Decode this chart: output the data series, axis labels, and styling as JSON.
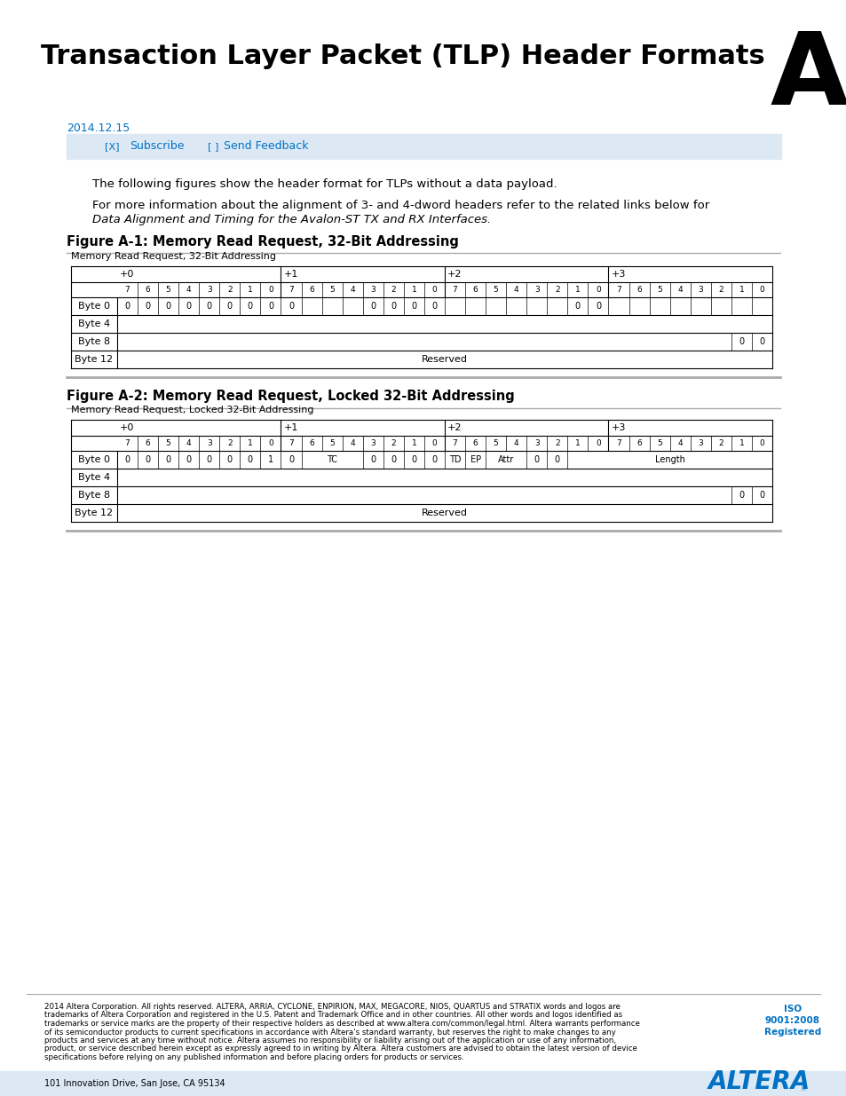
{
  "title": "Transaction Layer Packet (TLP) Header Formats",
  "appendix_letter": "A",
  "date": "2014.12.15",
  "para1": "The following figures show the header format for TLPs without a data payload.",
  "para2": "For more information about the alignment of 3- and 4-dword headers refer to the related links below for",
  "para2b": "Data Alignment and Timing for the Avalon-ST TX and RX Interfaces.",
  "fig1_title": "Figure A-1: Memory Read Request, 32-Bit Addressing",
  "fig1_subtitle": "Memory Read Request, 32-Bit Addressing",
  "fig2_title": "Figure A-2: Memory Read Request, Locked 32-Bit Addressing",
  "fig2_subtitle": "Memory Read Request, Locked 32-Bit Addressing",
  "footer_lines": [
    "2014 Altera Corporation. All rights reserved. ALTERA, ARRIA, CYCLONE, ENPIRION, MAX, MEGACORE, NIOS, QUARTUS and STRATIX words and logos are",
    "trademarks of Altera Corporation and registered in the U.S. Patent and Trademark Office and in other countries. All other words and logos identified as",
    "trademarks or service marks are the property of their respective holders as described at www.altera.com/common/legal.html. Altera warrants performance",
    "of its semiconductor products to current specifications in accordance with Altera's standard warranty, but reserves the right to make changes to any",
    "products and services at any time without notice. Altera assumes no responsibility or liability arising out of the application or use of any information,",
    "product, or service described herein except as expressly agreed to in writing by Altera. Altera customers are advised to obtain the latest version of device",
    "specifications before relying on any published information and before placing orders for products or services."
  ],
  "footer_addr": "101 Innovation Drive, San Jose, CA 95134",
  "iso_line1": "ISO",
  "iso_line2": "9001:2008",
  "iso_line3": "Registered",
  "bg_color": "#ffffff",
  "blue_color": "#0071c5",
  "light_blue": "#dce9f5",
  "black": "#000000",
  "gray_line": "#aaaaaa",
  "fig1_single_vals": {
    "0": "0",
    "1": "0",
    "2": "0",
    "3": "0",
    "4": "0",
    "5": "0",
    "6": "0",
    "7": "0",
    "8": "0",
    "12": "0",
    "13": "0",
    "14": "0",
    "15": "0",
    "22": "0",
    "23": "0"
  },
  "fig2_single_vals": {
    "0": "0",
    "1": "0",
    "2": "0",
    "3": "0",
    "4": "0",
    "5": "0",
    "6": "0",
    "7": "1",
    "8": "0",
    "12": "0",
    "13": "0",
    "14": "0",
    "15": "0",
    "20": "0",
    "21": "0"
  },
  "fig2_merged": [
    [
      9,
      11,
      "TC"
    ],
    [
      16,
      16,
      "TD"
    ],
    [
      17,
      17,
      "EP"
    ],
    [
      18,
      19,
      "Attr"
    ],
    [
      22,
      31,
      "Length"
    ]
  ]
}
